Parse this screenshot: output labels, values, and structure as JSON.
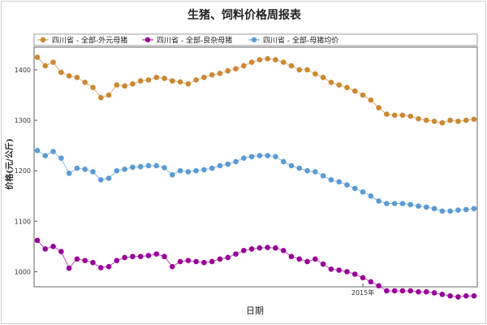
{
  "chart_data": {
    "type": "line",
    "title": "生猪、饲料价格周报表",
    "xlabel": "日期",
    "ylabel": "价格(元/公斤)",
    "x_tick_labels": [
      "2015年"
    ],
    "ylim": [
      970,
      1445
    ],
    "y_ticks": [
      1000,
      1100,
      1200,
      1300,
      1400
    ],
    "grid": false,
    "legend_position": "top",
    "series": [
      {
        "name": "四川省 - 全部-外元母猪",
        "color": "#cc8833",
        "values": [
          1425,
          1408,
          1415,
          1395,
          1388,
          1385,
          1375,
          1365,
          1345,
          1350,
          1370,
          1368,
          1372,
          1378,
          1380,
          1385,
          1383,
          1378,
          1376,
          1372,
          1380,
          1385,
          1390,
          1393,
          1398,
          1402,
          1408,
          1415,
          1420,
          1422,
          1420,
          1415,
          1408,
          1400,
          1400,
          1392,
          1385,
          1375,
          1370,
          1365,
          1358,
          1350,
          1340,
          1325,
          1312,
          1310,
          1310,
          1308,
          1303,
          1300,
          1298,
          1295,
          1300,
          1298,
          1300,
          1302
        ]
      },
      {
        "name": "四川省 - 全部-良杂母猪",
        "color": "#990099",
        "values": [
          1062,
          1045,
          1050,
          1040,
          1007,
          1025,
          1022,
          1018,
          1008,
          1010,
          1022,
          1028,
          1030,
          1030,
          1032,
          1035,
          1030,
          1010,
          1020,
          1022,
          1020,
          1018,
          1020,
          1025,
          1028,
          1035,
          1042,
          1045,
          1047,
          1048,
          1047,
          1042,
          1030,
          1025,
          1020,
          1025,
          1015,
          1005,
          1003,
          1000,
          995,
          988,
          980,
          972,
          962,
          962,
          962,
          962,
          960,
          960,
          958,
          955,
          952,
          950,
          952,
          952
        ]
      },
      {
        "name": "四川省 - 全部-母猪均价",
        "color": "#5b9bd5",
        "values": [
          1240,
          1230,
          1238,
          1225,
          1195,
          1205,
          1203,
          1198,
          1182,
          1185,
          1200,
          1203,
          1207,
          1208,
          1210,
          1210,
          1206,
          1192,
          1200,
          1198,
          1200,
          1202,
          1205,
          1210,
          1213,
          1218,
          1225,
          1228,
          1230,
          1230,
          1228,
          1218,
          1210,
          1205,
          1200,
          1198,
          1190,
          1182,
          1178,
          1172,
          1165,
          1158,
          1150,
          1140,
          1135,
          1135,
          1135,
          1133,
          1130,
          1128,
          1125,
          1120,
          1120,
          1122,
          1123,
          1125
        ]
      }
    ]
  }
}
